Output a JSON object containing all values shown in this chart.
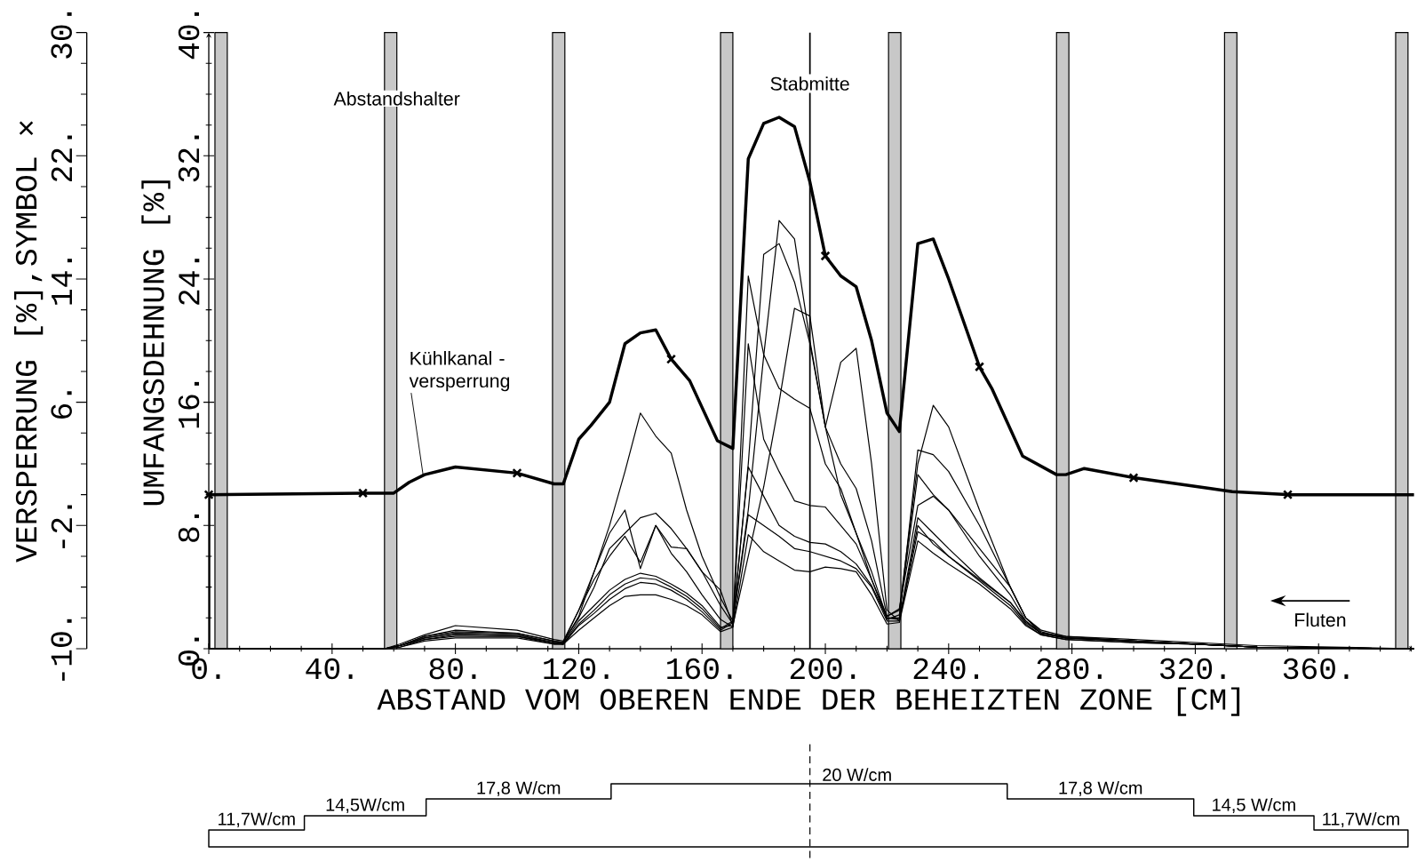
{
  "chart_data": [
    {
      "type": "line",
      "xlabel": "ABSTAND VOM OBEREN ENDE DER BEHEIZTEN ZONE [CM]",
      "ylabel": "UMFANGSDEHNUNG [%]",
      "y2label": "VERSPERRUNG [%],SYMBOL ×",
      "xlim": [
        0,
        391
      ],
      "ylim": [
        0,
        40
      ],
      "y2lim": [
        -10,
        30
      ],
      "xticks": [
        {
          "value": 0,
          "label": "0."
        },
        {
          "value": 10,
          "label": null
        },
        {
          "value": 20,
          "label": null
        },
        {
          "value": 30,
          "label": null
        },
        {
          "value": 40,
          "label": "40."
        },
        {
          "value": 50,
          "label": null
        },
        {
          "value": 60,
          "label": null
        },
        {
          "value": 70,
          "label": null
        },
        {
          "value": 80,
          "label": "80."
        },
        {
          "value": 90,
          "label": null
        },
        {
          "value": 100,
          "label": null
        },
        {
          "value": 110,
          "label": null
        },
        {
          "value": 120,
          "label": "120."
        },
        {
          "value": 130,
          "label": null
        },
        {
          "value": 140,
          "label": null
        },
        {
          "value": 150,
          "label": null
        },
        {
          "value": 160,
          "label": "160."
        },
        {
          "value": 170,
          "label": null
        },
        {
          "value": 180,
          "label": null
        },
        {
          "value": 190,
          "label": null
        },
        {
          "value": 200,
          "label": "200."
        },
        {
          "value": 210,
          "label": null
        },
        {
          "value": 220,
          "label": null
        },
        {
          "value": 230,
          "label": null
        },
        {
          "value": 240,
          "label": "240."
        },
        {
          "value": 250,
          "label": null
        },
        {
          "value": 260,
          "label": null
        },
        {
          "value": 270,
          "label": null
        },
        {
          "value": 280,
          "label": "280."
        },
        {
          "value": 290,
          "label": null
        },
        {
          "value": 300,
          "label": null
        },
        {
          "value": 310,
          "label": null
        },
        {
          "value": 320,
          "label": "320."
        },
        {
          "value": 330,
          "label": null
        },
        {
          "value": 340,
          "label": null
        },
        {
          "value": 350,
          "label": null
        },
        {
          "value": 360,
          "label": "360."
        },
        {
          "value": 370,
          "label": null
        },
        {
          "value": 380,
          "label": null
        },
        {
          "value": 390,
          "label": null
        }
      ],
      "yticks": [
        {
          "value": 0,
          "label": "0."
        },
        {
          "value": 2,
          "label": null
        },
        {
          "value": 4,
          "label": null
        },
        {
          "value": 6,
          "label": null
        },
        {
          "value": 8,
          "label": "8."
        },
        {
          "value": 10,
          "label": null
        },
        {
          "value": 12,
          "label": null
        },
        {
          "value": 14,
          "label": null
        },
        {
          "value": 16,
          "label": "16."
        },
        {
          "value": 18,
          "label": null
        },
        {
          "value": 20,
          "label": null
        },
        {
          "value": 22,
          "label": null
        },
        {
          "value": 24,
          "label": "24."
        },
        {
          "value": 26,
          "label": null
        },
        {
          "value": 28,
          "label": null
        },
        {
          "value": 30,
          "label": null
        },
        {
          "value": 32,
          "label": "32."
        },
        {
          "value": 34,
          "label": null
        },
        {
          "value": 36,
          "label": null
        },
        {
          "value": 38,
          "label": null
        },
        {
          "value": 40,
          "label": "40."
        }
      ],
      "y2ticks": [
        {
          "value": -10,
          "label": "-10."
        },
        {
          "value": -8,
          "label": null
        },
        {
          "value": -6,
          "label": null
        },
        {
          "value": -4,
          "label": null
        },
        {
          "value": -2,
          "label": "-2."
        },
        {
          "value": 0,
          "label": null
        },
        {
          "value": 2,
          "label": null
        },
        {
          "value": 4,
          "label": null
        },
        {
          "value": 6,
          "label": "6."
        },
        {
          "value": 8,
          "label": null
        },
        {
          "value": 10,
          "label": null
        },
        {
          "value": 12,
          "label": null
        },
        {
          "value": 14,
          "label": "14."
        },
        {
          "value": 16,
          "label": null
        },
        {
          "value": 18,
          "label": null
        },
        {
          "value": 20,
          "label": null
        },
        {
          "value": 22,
          "label": "22."
        },
        {
          "value": 24,
          "label": null
        },
        {
          "value": 26,
          "label": null
        },
        {
          "value": 28,
          "label": null
        },
        {
          "value": 30,
          "label": "30."
        }
      ],
      "x": [
        0,
        57,
        62,
        70,
        80,
        100,
        112,
        115,
        120,
        125,
        130,
        135,
        140,
        145,
        150,
        155,
        160,
        166,
        170,
        175,
        180,
        185,
        190,
        195,
        200,
        205,
        210,
        215,
        220,
        224,
        230,
        235,
        240,
        250,
        260,
        265,
        270,
        278,
        300,
        320,
        340,
        391
      ],
      "series": [
        {
          "color": "#000000",
          "values": [
            0,
            0,
            0.3,
            0.9,
            1.5,
            1.2,
            0.6,
            0.5,
            2.5,
            5,
            8,
            11.5,
            15.3,
            13.8,
            12.7,
            9,
            6,
            3.3,
            1.8,
            9,
            19,
            27.8,
            26.6,
            20,
            14.4,
            12,
            10.4,
            7,
            2.1,
            2.5,
            12,
            15.8,
            14.4,
            9,
            4,
            2,
            1.2,
            0.8,
            0.6,
            0.4,
            0.2,
            0
          ]
        },
        {
          "color": "#000000",
          "values": [
            0,
            0,
            0.2,
            0.8,
            1.2,
            1.0,
            0.5,
            0.4,
            2.1,
            5,
            7.5,
            9.0,
            5.2,
            8.0,
            6.6,
            6.5,
            5,
            2.8,
            1.6,
            12,
            25.6,
            26.3,
            23.8,
            19.8,
            14.4,
            10,
            7.5,
            5,
            2.0,
            2.0,
            12.9,
            12.6,
            11.5,
            8,
            4,
            2,
            1.0,
            0.8,
            0.5,
            0.3,
            0.1,
            0
          ]
        },
        {
          "color": "#000000",
          "values": [
            0,
            0,
            0.2,
            0.8,
            1.1,
            1.0,
            0.5,
            0.4,
            2.0,
            4,
            6.5,
            7.5,
            8.5,
            8.8,
            7.8,
            6.5,
            5,
            3.8,
            1.5,
            24.2,
            19.1,
            16.9,
            16.2,
            15.6,
            12,
            10.4,
            7.5,
            4.5,
            1.9,
            2.2,
            11.3,
            10,
            9,
            6.5,
            4,
            2,
            1.1,
            0.7,
            0.5,
            0.3,
            0.1,
            0
          ]
        },
        {
          "color": "#000000",
          "values": [
            0,
            0,
            0.2,
            0.7,
            1.0,
            0.9,
            0.4,
            0.4,
            2.5,
            4.5,
            6,
            7.3,
            5.6,
            8.0,
            6.2,
            5,
            3.5,
            1.9,
            1.4,
            19.8,
            13.6,
            11.5,
            9.6,
            9.3,
            9.2,
            8,
            6.8,
            4.5,
            2.1,
            2.6,
            9.3,
            9.9,
            9,
            6,
            3.5,
            1.8,
            1.0,
            0.7,
            0.5,
            0.3,
            0.1,
            0
          ]
        },
        {
          "color": "#000000",
          "values": [
            0,
            0,
            0.2,
            0.7,
            1.0,
            0.9,
            0.4,
            0.3,
            1.8,
            2.8,
            3.8,
            4.5,
            4.9,
            4.7,
            4.2,
            3.6,
            2.8,
            1.4,
            1.5,
            6,
            10.5,
            16,
            22.1,
            21.6,
            14.4,
            18.6,
            19.5,
            12,
            2.5,
            1.8,
            7.6,
            7,
            6,
            4.5,
            3,
            1.8,
            1.0,
            0.7,
            0.5,
            0.3,
            0.1,
            0
          ]
        },
        {
          "color": "#000000",
          "values": [
            0,
            0,
            0.2,
            0.6,
            0.9,
            0.8,
            0.4,
            0.3,
            1.6,
            2.5,
            3.5,
            4.2,
            4.6,
            4.5,
            4.0,
            3.4,
            2.6,
            1.3,
            1.8,
            11.8,
            9.9,
            8.0,
            7.3,
            6.9,
            6.8,
            6.3,
            5.5,
            4.1,
            2.0,
            1.9,
            8.5,
            7.5,
            6.5,
            4.6,
            3,
            1.7,
            1.0,
            0.7,
            0.5,
            0.3,
            0.1,
            0
          ]
        },
        {
          "color": "#000000",
          "values": [
            0,
            0,
            0.1,
            0.6,
            0.8,
            0.8,
            0.3,
            0.3,
            1.5,
            2.3,
            3.2,
            3.9,
            4.3,
            4.2,
            3.8,
            3.2,
            2.4,
            1.2,
            1.7,
            8.7,
            8.0,
            7.3,
            6.5,
            6.3,
            6.0,
            5.7,
            5.2,
            4.0,
            1.8,
            1.8,
            8,
            6.8,
            6.0,
            4.4,
            2.8,
            1.6,
            0.9,
            0.6,
            0.4,
            0.3,
            0.1,
            0
          ]
        },
        {
          "color": "#000000",
          "values": [
            0,
            0,
            0.1,
            0.5,
            0.7,
            0.7,
            0.3,
            0.3,
            1.2,
            2.0,
            2.8,
            3.4,
            3.5,
            3.5,
            3.2,
            2.8,
            2.2,
            1.1,
            1.4,
            7.4,
            6.3,
            5.7,
            5.1,
            5.0,
            5.3,
            5.2,
            5.0,
            3.5,
            1.6,
            1.7,
            7,
            6.2,
            5.5,
            4.2,
            2.6,
            1.5,
            0.9,
            0.6,
            0.4,
            0.3,
            0.1,
            0
          ]
        },
        {
          "color": "#000000",
          "axis": "y2",
          "x": [
            0,
            0,
            50,
            60,
            65,
            70,
            80,
            100,
            112,
            115,
            120,
            124,
            130,
            135,
            140,
            145,
            150,
            156,
            165,
            170,
            175,
            180,
            185,
            190,
            195,
            200,
            205,
            210,
            215,
            220,
            224,
            230,
            235,
            240,
            250,
            254,
            264,
            275,
            278,
            284,
            300,
            325,
            332,
            351,
            391
          ],
          "values": [
            -10,
            0,
            0.1,
            0.1,
            0.8,
            1.3,
            1.8,
            1.4,
            0.7,
            0.7,
            3.6,
            4.5,
            6.0,
            9.8,
            10.5,
            10.7,
            8.8,
            7.4,
            3.5,
            3.0,
            21.8,
            24.1,
            24.5,
            23.9,
            20.3,
            15.5,
            14.2,
            13.5,
            10.0,
            5.3,
            4.1,
            16.3,
            16.6,
            14.0,
            8.3,
            6.9,
            2.5,
            1.3,
            1.3,
            1.7,
            1.1,
            0.4,
            0.2,
            0.0,
            0
          ]
        },
        {
          "type": "scatter",
          "marker": "cross",
          "color": "#000000",
          "axis": "y2",
          "x": [
            0,
            50,
            100,
            150,
            200,
            250,
            300,
            350
          ],
          "values": [
            0,
            0.1,
            1.4,
            8.8,
            15.5,
            8.3,
            1.1,
            0.0
          ]
        }
      ],
      "bands": [
        {
          "axis": "x",
          "from": 2,
          "to": 6,
          "color": "#c8c8c8"
        },
        {
          "axis": "x",
          "from": 57,
          "to": 61,
          "color": "#c8c8c8"
        },
        {
          "axis": "x",
          "from": 111.5,
          "to": 115.5,
          "color": "#c8c8c8"
        },
        {
          "axis": "x",
          "from": 166,
          "to": 170,
          "color": "#c8c8c8"
        },
        {
          "axis": "x",
          "from": 220.5,
          "to": 224.5,
          "color": "#c8c8c8"
        },
        {
          "axis": "x",
          "from": 275,
          "to": 279,
          "color": "#c8c8c8"
        },
        {
          "axis": "x",
          "from": 329.5,
          "to": 333.5,
          "color": "#c8c8c8"
        },
        {
          "axis": "x",
          "from": 385,
          "to": 389,
          "color": "#c8c8c8"
        }
      ],
      "ref_lines": [
        {
          "axis": "x",
          "value": 195,
          "label": "Stabmitte"
        }
      ],
      "annotations": [
        "Abstandshalter",
        "Fluten",
        {
          "text": "Kühlkanal - versperrung",
          "x": 69.5,
          "y": 11.3
        }
      ]
    },
    {
      "type": "other",
      "annotations": [
        "11,7W/cm",
        "14,5W/cm",
        "17,8 W/cm",
        "20 W/cm",
        "17,8 W/cm",
        "14,5 W/cm",
        "11,7W/cm"
      ]
    }
  ]
}
